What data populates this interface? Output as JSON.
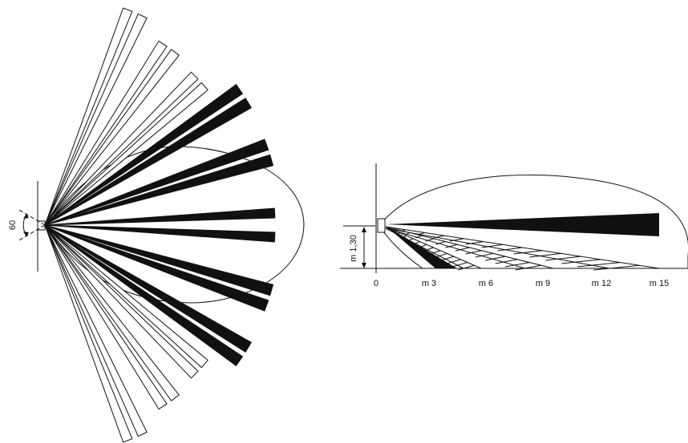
{
  "top_view": {
    "angle_label": "60"
  },
  "side_view": {
    "height_label": "m 1,30",
    "axis_ticks": [
      "0",
      "m 3",
      "m 6",
      "m 9",
      "m 12",
      "m 15"
    ]
  },
  "colors": {
    "ink": "#111111",
    "background": "#ffffff"
  }
}
